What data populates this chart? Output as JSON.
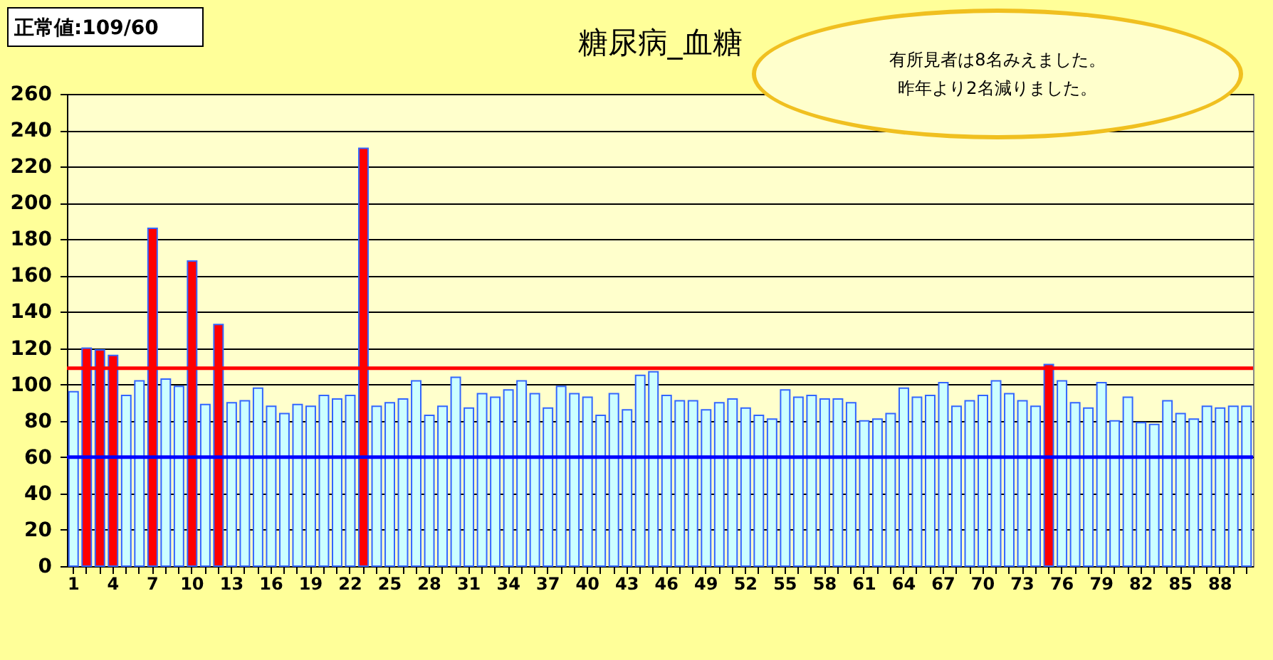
{
  "chart_data": {
    "type": "bar",
    "title": "糖尿病_血糖",
    "categories": [
      "1",
      null,
      null,
      "4",
      null,
      null,
      "7",
      null,
      null,
      "10",
      null,
      null,
      "13",
      null,
      null,
      "16",
      null,
      null,
      "19",
      null,
      null,
      "22",
      null,
      null,
      "25",
      null,
      null,
      "28",
      null,
      null,
      "31",
      null,
      null,
      "34",
      null,
      null,
      "37",
      null,
      null,
      "40",
      null,
      null,
      "43",
      null,
      null,
      "46",
      null,
      null,
      "49",
      null,
      null,
      "52",
      null,
      null,
      "55",
      null,
      null,
      "58",
      null,
      null,
      "61",
      null,
      null,
      "64",
      null,
      null,
      "67",
      null,
      null,
      "70",
      null,
      null,
      "73",
      null,
      null,
      "76",
      null,
      null,
      "79",
      null,
      null,
      "82",
      null,
      null,
      "85",
      null,
      null,
      "88",
      null,
      null
    ],
    "values": [
      96,
      120,
      119,
      116,
      94,
      102,
      186,
      103,
      99,
      168,
      89,
      133,
      90,
      91,
      98,
      88,
      84,
      89,
      88,
      94,
      92,
      94,
      230,
      88,
      90,
      92,
      102,
      83,
      88,
      104,
      87,
      95,
      93,
      97,
      102,
      95,
      87,
      99,
      95,
      93,
      83,
      95,
      86,
      105,
      107,
      94,
      91,
      91,
      86,
      90,
      92,
      87,
      83,
      81,
      97,
      93,
      94,
      92,
      92,
      90,
      80,
      81,
      84,
      98,
      93,
      94,
      101,
      88,
      91,
      94,
      102,
      95,
      91,
      88,
      111,
      102,
      90,
      87,
      101,
      80,
      93,
      79,
      78,
      91,
      84,
      81,
      88,
      87,
      88,
      88
    ],
    "colors": [
      "#ccffff",
      "#ff0000",
      "#ff0000",
      "#ff0000",
      "#ccffff",
      "#ccffff",
      "#ff0000",
      "#ccffff",
      "#ccffff",
      "#ff0000",
      "#ccffff",
      "#ff0000",
      "#ccffff",
      "#ccffff",
      "#ccffff",
      "#ccffff",
      "#ccffff",
      "#ccffff",
      "#ccffff",
      "#ccffff",
      "#ccffff",
      "#ccffff",
      "#ff0000",
      "#ccffff",
      "#ccffff",
      "#ccffff",
      "#ccffff",
      "#ccffff",
      "#ccffff",
      "#ccffff",
      "#ccffff",
      "#ccffff",
      "#ccffff",
      "#ccffff",
      "#ccffff",
      "#ccffff",
      "#ccffff",
      "#ccffff",
      "#ccffff",
      "#ccffff",
      "#ccffff",
      "#ccffff",
      "#ccffff",
      "#ccffff",
      "#ccffff",
      "#ccffff",
      "#ccffff",
      "#ccffff",
      "#ccffff",
      "#ccffff",
      "#ccffff",
      "#ccffff",
      "#ccffff",
      "#ccffff",
      "#ccffff",
      "#ccffff",
      "#ccffff",
      "#ccffff",
      "#ccffff",
      "#ccffff",
      "#ccffff",
      "#ccffff",
      "#ccffff",
      "#ccffff",
      "#ccffff",
      "#ccffff",
      "#ccffff",
      "#ccffff",
      "#ccffff",
      "#ccffff",
      "#ccffff",
      "#ccffff",
      "#ccffff",
      "#ccffff",
      "#ff0000",
      "#ccffff",
      "#ccffff",
      "#ccffff",
      "#ccffff",
      "#ccffff",
      "#ccffff",
      "#ccffff",
      "#ccffff",
      "#ccffff",
      "#ccffff",
      "#ccffff",
      "#ccffff",
      "#ccffff",
      "#ccffff",
      "#ccffff"
    ],
    "ylim": [
      0,
      260
    ],
    "yticks": [
      0,
      20,
      40,
      60,
      80,
      100,
      120,
      140,
      160,
      180,
      200,
      220,
      240,
      260
    ],
    "grid": "y",
    "ref_lines": [
      {
        "axis": "y",
        "value": 109,
        "color": "#ff0000"
      },
      {
        "axis": "y",
        "value": 60,
        "color": "#0000ff"
      }
    ],
    "annotations": [
      "正常値:109/60",
      "有所見者は8名みえました。",
      "昨年より2名減りました。"
    ]
  }
}
